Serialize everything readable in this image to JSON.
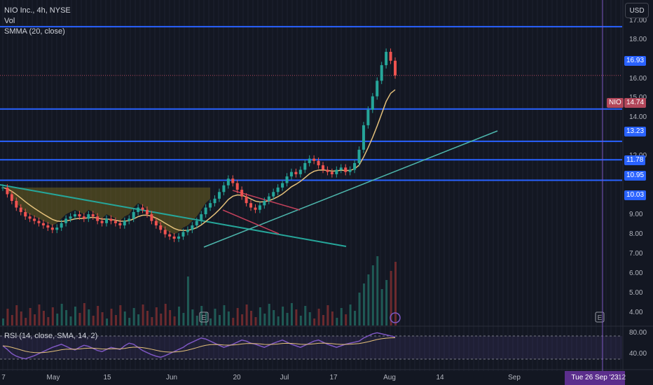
{
  "legend": {
    "symbol": "NIO Inc., 4h, NYSE",
    "vol": "Vol",
    "smma": "SMMA (20, close)"
  },
  "rsi_legend": "RSI (14, close, SMA, 14, 2)",
  "currency_button": "USD",
  "price_axis": [
    "17.00",
    "18.00",
    "16.00",
    "15.00",
    "14.00",
    "12.00",
    "9.00",
    "8.00",
    "7.00",
    "6.00",
    "5.00",
    "4.00"
  ],
  "rsi_axis": [
    "80.00",
    "40.00"
  ],
  "time_axis": [
    "7",
    "May",
    "15",
    "Jun",
    "20",
    "Jul",
    "17",
    "Aug",
    "14",
    "Sep"
  ],
  "horizontal_levels": [
    "16.93",
    "13.23",
    "11.78",
    "10.95",
    "10.03"
  ],
  "current_price": "14.74",
  "ticker_tag": "NIO",
  "cursor_date": "Tue 26 Sep '23",
  "cursor_tail": "12",
  "earnings_marker": "E",
  "colors": {
    "background": "#131722",
    "level_line": "#2962ff",
    "trend_line": "#26a69a",
    "smma": "#e4c07a",
    "rsi": "#7e57c2",
    "cursor": "#7e57c2",
    "bull": "#26a69a",
    "bear": "#ef5350"
  },
  "chart_data": {
    "type": "candlestick",
    "price_range": [
      3.5,
      17.5
    ],
    "levels": [
      16.93,
      13.23,
      11.78,
      10.95,
      10.03
    ],
    "current": 14.74,
    "closes": [
      9.7,
      9.4,
      9.1,
      8.8,
      8.6,
      8.4,
      8.3,
      8.2,
      8.1,
      8.0,
      7.9,
      7.8,
      7.9,
      8.1,
      8.3,
      8.4,
      8.5,
      8.4,
      8.3,
      8.5,
      8.4,
      8.2,
      8.1,
      8.3,
      8.2,
      8.1,
      8.0,
      8.2,
      8.3,
      8.6,
      8.8,
      8.7,
      8.5,
      8.2,
      8.0,
      7.8,
      7.6,
      7.5,
      7.4,
      7.5,
      7.7,
      7.8,
      8.0,
      8.2,
      8.5,
      8.8,
      9.0,
      9.2,
      9.5,
      9.8,
      10.1,
      9.9,
      9.6,
      9.3,
      9.0,
      8.8,
      8.7,
      8.9,
      9.1,
      9.3,
      9.5,
      9.7,
      9.9,
      10.2,
      10.4,
      10.3,
      10.5,
      10.8,
      11.0,
      10.9,
      10.7,
      10.5,
      10.4,
      10.3,
      10.5,
      10.6,
      10.4,
      10.5,
      10.8,
      11.4,
      12.5,
      13.2,
      13.8,
      14.5,
      15.2,
      15.8,
      15.4,
      14.74
    ],
    "rsi": [
      55,
      48,
      40,
      35,
      32,
      30,
      33,
      36,
      40,
      44,
      48,
      52,
      55,
      58,
      54,
      50,
      47,
      52,
      56,
      54,
      50,
      46,
      44,
      48,
      52,
      50,
      48,
      55,
      60,
      58,
      52,
      46,
      42,
      38,
      35,
      33,
      36,
      40,
      44,
      48,
      52,
      58,
      62,
      66,
      70,
      68,
      64,
      60,
      56,
      52,
      55,
      58,
      62,
      66,
      64,
      60,
      58,
      55,
      52,
      56,
      60,
      63,
      66,
      62,
      58,
      55,
      52,
      56,
      60,
      64,
      66,
      62,
      58,
      55,
      52,
      55,
      58,
      60,
      62,
      64,
      70,
      74,
      78,
      80,
      78,
      76,
      74,
      72
    ],
    "rsi_range": [
      20,
      90
    ]
  }
}
